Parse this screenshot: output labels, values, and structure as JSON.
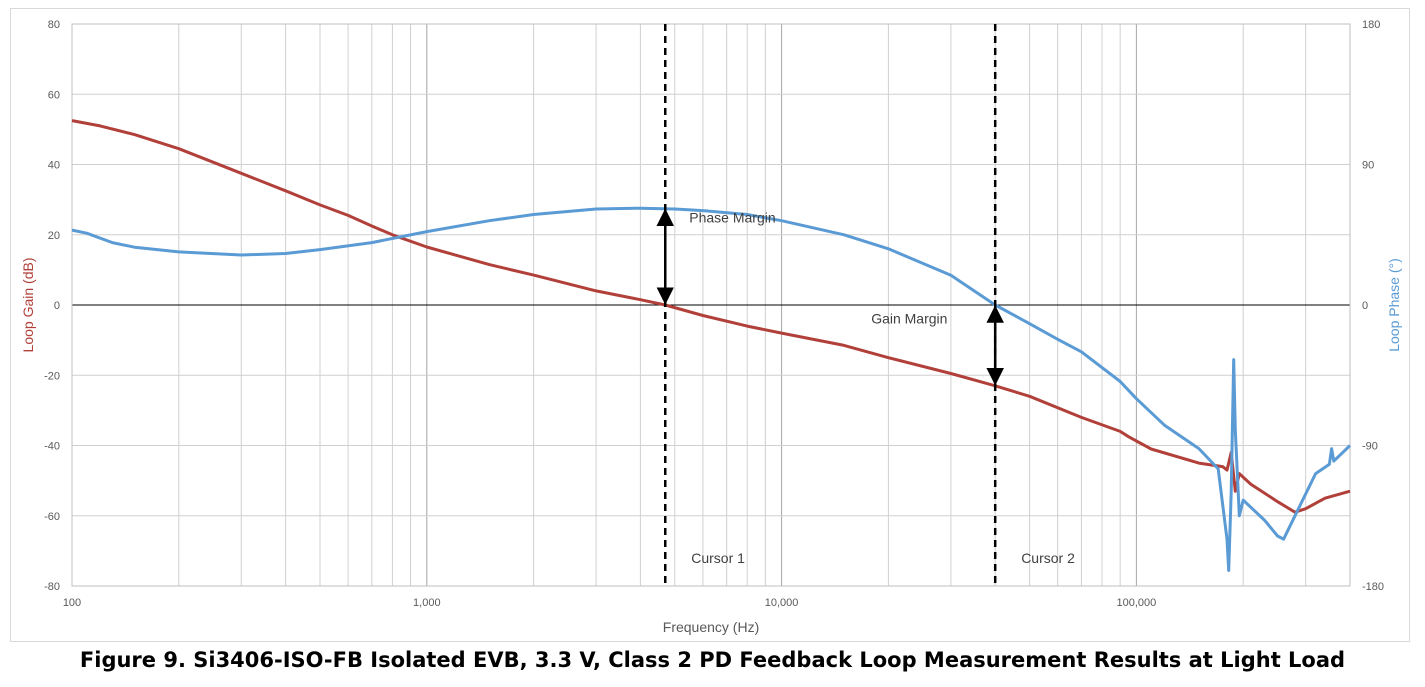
{
  "caption": "Figure 9. Si3406-ISO-FB Isolated EVB, 3.3 V, Class 2 PD Feedback Loop Measurement Results at Light Load",
  "colors": {
    "gain": "#b2403a",
    "phase": "#5b9bd5",
    "grid": "#d0d0d0",
    "text": "#595959"
  },
  "chart_data": {
    "type": "line",
    "xlabel": "Frequency (Hz)",
    "ylabel_left": "Loop Gain (dB)",
    "ylabel_right": "Loop Phase (°)",
    "x_scale": "log",
    "xlim": [
      100,
      400000
    ],
    "ylim_left": [
      -80,
      80
    ],
    "ylim_right": [
      -180,
      180
    ],
    "grid": true,
    "x_ticks": [
      {
        "value": 100,
        "label": "100"
      },
      {
        "value": 1000,
        "label": "1,000"
      },
      {
        "value": 10000,
        "label": "10,000"
      },
      {
        "value": 100000,
        "label": "100,000"
      }
    ],
    "y_ticks_left": [
      "-80",
      "-60",
      "-40",
      "-20",
      "0",
      "20",
      "40",
      "60",
      "80"
    ],
    "y_ticks_right": [
      "-180",
      "-90",
      "0",
      "90",
      "180"
    ],
    "series": [
      {
        "axis": "left",
        "points": [
          [
            100,
            52.5
          ],
          [
            120,
            51
          ],
          [
            150,
            48.5
          ],
          [
            200,
            44.5
          ],
          [
            300,
            37.5
          ],
          [
            400,
            32.5
          ],
          [
            500,
            28.5
          ],
          [
            600,
            25.5
          ],
          [
            700,
            22.5
          ],
          [
            800,
            20
          ],
          [
            1000,
            16.5
          ],
          [
            1500,
            11.5
          ],
          [
            2000,
            8.5
          ],
          [
            3000,
            4
          ],
          [
            4000,
            1.5
          ],
          [
            4700,
            0
          ],
          [
            6000,
            -3
          ],
          [
            8000,
            -6
          ],
          [
            10000,
            -8
          ],
          [
            15000,
            -11.5
          ],
          [
            20000,
            -15
          ],
          [
            30000,
            -19.5
          ],
          [
            40000,
            -23
          ],
          [
            50000,
            -26
          ],
          [
            70000,
            -32
          ],
          [
            90000,
            -36
          ],
          [
            95000,
            -37.5
          ],
          [
            110000,
            -41
          ],
          [
            150000,
            -45
          ],
          [
            175000,
            -46
          ],
          [
            180000,
            -47
          ],
          [
            185000,
            -42
          ],
          [
            190000,
            -53
          ],
          [
            195000,
            -48
          ],
          [
            210000,
            -51
          ],
          [
            250000,
            -56
          ],
          [
            280000,
            -59
          ],
          [
            300000,
            -58
          ],
          [
            340000,
            -55
          ],
          [
            400000,
            -53
          ]
        ]
      },
      {
        "axis": "right",
        "points": [
          [
            100,
            48
          ],
          [
            110,
            46
          ],
          [
            130,
            40
          ],
          [
            150,
            37
          ],
          [
            200,
            34
          ],
          [
            300,
            32
          ],
          [
            400,
            33
          ],
          [
            500,
            35.5
          ],
          [
            700,
            40
          ],
          [
            1000,
            47
          ],
          [
            1500,
            54
          ],
          [
            2000,
            58
          ],
          [
            3000,
            61.5
          ],
          [
            4000,
            62
          ],
          [
            5000,
            61.5
          ],
          [
            6000,
            60.5
          ],
          [
            8000,
            58
          ],
          [
            10000,
            54
          ],
          [
            15000,
            45
          ],
          [
            20000,
            36
          ],
          [
            30000,
            19
          ],
          [
            40000,
            0
          ],
          [
            50000,
            -12
          ],
          [
            60000,
            -22
          ],
          [
            70000,
            -30
          ],
          [
            90000,
            -49
          ],
          [
            100000,
            -60
          ],
          [
            120000,
            -77
          ],
          [
            150000,
            -92
          ],
          [
            170000,
            -105
          ],
          [
            180000,
            -150
          ],
          [
            182000,
            -170
          ],
          [
            185000,
            -120
          ],
          [
            188000,
            -35
          ],
          [
            190000,
            -80
          ],
          [
            195000,
            -135
          ],
          [
            200000,
            -125
          ],
          [
            230000,
            -138
          ],
          [
            250000,
            -148
          ],
          [
            260000,
            -150
          ],
          [
            280000,
            -135
          ],
          [
            320000,
            -108
          ],
          [
            350000,
            -102
          ],
          [
            355000,
            -92
          ],
          [
            360000,
            -100
          ],
          [
            400000,
            -90
          ]
        ]
      }
    ],
    "cursors": [
      {
        "label": "Cursor 1",
        "x": 4700
      },
      {
        "label": "Cursor 2",
        "x": 40000
      }
    ],
    "annotations": [
      {
        "label": "Phase Margin",
        "x": 4700,
        "from_phase": 62,
        "to_gain": 0
      },
      {
        "label": "Gain Margin",
        "x": 40000,
        "from_phase": 0,
        "to_gain": -23
      }
    ]
  }
}
